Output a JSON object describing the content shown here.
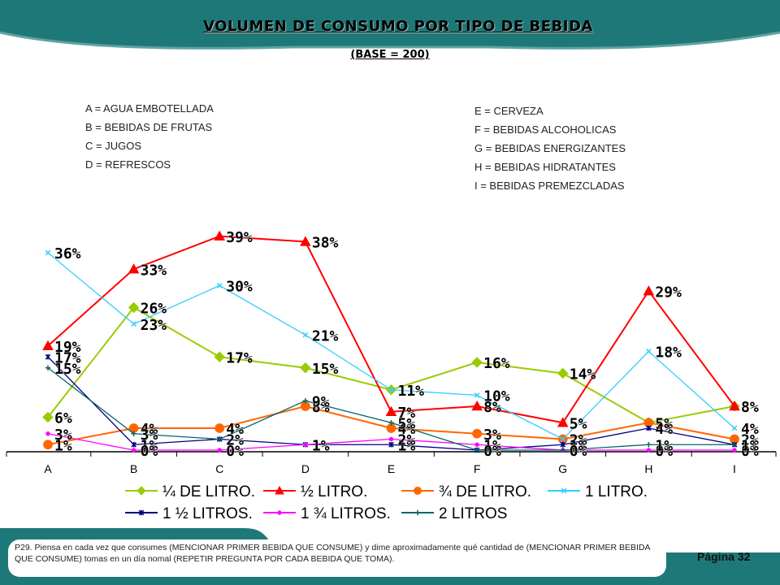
{
  "title": "VOLUMEN DE CONSUMO POR TIPO DE BEBIDA",
  "subtitle": "(BASE = 200)",
  "key_left": [
    "A = AGUA EMBOTELLADA",
    "B = BEBIDAS DE FRUTAS",
    "C = JUGOS",
    "D = REFRESCOS"
  ],
  "key_right": [
    "E = CERVEZA",
    "F = BEBIDAS ALCOHOLICAS",
    "G = BEBIDAS ENERGIZANTES",
    "H = BEBIDAS HIDRATANTES",
    "I = BEBIDAS PREMEZCLADAS"
  ],
  "footnote": "P29. Piensa en cada vez que consumes (MENCIONAR PRIMER BEBIDA QUE CONSUME) y dime aproximadamente qué cantidad de (MENCIONAR PRIMER BEBIDA QUE CONSUME) tomas en un día nomal (REPETIR PREGUNTA POR CADA BEBIDA QUE TOMA).",
  "page_label": "Página 32",
  "colors": {
    "band": "#1f7878",
    "band_light": "#5fa3a3"
  },
  "chart_data": {
    "type": "line",
    "categories": [
      "A",
      "B",
      "C",
      "D",
      "E",
      "F",
      "G",
      "H",
      "I"
    ],
    "ylim": [
      0,
      40
    ],
    "grid": false,
    "legend": "bottom",
    "value_suffix": "%",
    "series": [
      {
        "name": "¼ DE LITRO.",
        "color": "#99cc00",
        "marker": "diamond",
        "values": [
          6,
          26,
          17,
          15,
          11,
          16,
          14,
          5,
          8
        ]
      },
      {
        "name": "½ LITRO.",
        "color": "#ff0000",
        "marker": "triangle",
        "values": [
          19,
          33,
          39,
          38,
          7,
          8,
          5,
          29,
          8
        ]
      },
      {
        "name": "¾ DE LITRO.",
        "color": "#ff6600",
        "marker": "circle",
        "values": [
          1,
          4,
          4,
          8,
          4,
          3,
          2,
          5,
          2
        ]
      },
      {
        "name": "1 LITRO.",
        "color": "#33ccff",
        "marker": "x",
        "values": [
          36,
          23,
          30,
          21,
          11,
          10,
          2,
          18,
          4
        ]
      },
      {
        "name": "1 ½ LITROS.",
        "color": "#000080",
        "marker": "star",
        "values": [
          17,
          1,
          2,
          1,
          1,
          0,
          1,
          4,
          1
        ]
      },
      {
        "name": "1 ¾ LITROS.",
        "color": "#ff00ff",
        "marker": "dot",
        "values": [
          3,
          0,
          0,
          1,
          2,
          1,
          0,
          0,
          0
        ]
      },
      {
        "name": "2 LITROS",
        "color": "#006666",
        "marker": "plus",
        "values": [
          15,
          3,
          2,
          9,
          5,
          0,
          0,
          1,
          1
        ]
      }
    ]
  }
}
